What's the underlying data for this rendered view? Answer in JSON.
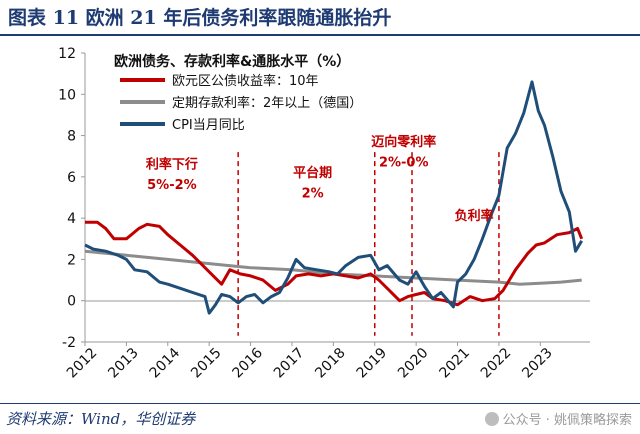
{
  "header": {
    "title": "图表 11  欧洲 21 年后债务利率跟随通胀抬升"
  },
  "footer": {
    "source": "资料来源：Wind，华创证券",
    "watermark": "公众号 · 姚佩策略探索"
  },
  "chart_data": {
    "type": "line",
    "title": "欧洲债务、存款利率&通胀水平（%）",
    "xlabel": "",
    "ylabel": "",
    "xlim": [
      2012,
      2024.2
    ],
    "ylim": [
      -2,
      12
    ],
    "yticks": [
      -2,
      0,
      2,
      4,
      6,
      8,
      10,
      12
    ],
    "xticks": [
      "2012",
      "2013",
      "2014",
      "2015",
      "2016",
      "2017",
      "2018",
      "2019",
      "2020",
      "2021",
      "2022",
      "2023"
    ],
    "legend_position": "top-left",
    "series": [
      {
        "name": "欧元区公债收益率：10年",
        "color": "#c00000",
        "x": [
          2012.0,
          2012.3,
          2012.5,
          2012.7,
          2013.0,
          2013.3,
          2013.5,
          2013.8,
          2014.0,
          2014.3,
          2014.6,
          2014.9,
          2015.1,
          2015.3,
          2015.5,
          2015.75,
          2016.0,
          2016.3,
          2016.6,
          2016.9,
          2017.1,
          2017.4,
          2017.7,
          2018.0,
          2018.3,
          2018.6,
          2018.9,
          2019.1,
          2019.3,
          2019.6,
          2019.8,
          2020.0,
          2020.2,
          2020.4,
          2020.7,
          2021.0,
          2021.3,
          2021.6,
          2021.9,
          2022.1,
          2022.4,
          2022.7,
          2022.9,
          2023.1,
          2023.4,
          2023.7,
          2023.9,
          2024.0
        ],
        "values": [
          3.8,
          3.8,
          3.5,
          3.0,
          3.0,
          3.5,
          3.7,
          3.6,
          3.2,
          2.7,
          2.2,
          1.6,
          1.2,
          0.8,
          1.5,
          1.3,
          1.2,
          1.0,
          0.5,
          0.8,
          1.2,
          1.3,
          1.2,
          1.3,
          1.2,
          1.1,
          1.3,
          1.0,
          0.6,
          0.0,
          0.2,
          0.3,
          0.4,
          0.1,
          0.0,
          -0.2,
          0.2,
          0.0,
          0.1,
          0.5,
          1.5,
          2.3,
          2.7,
          2.8,
          3.2,
          3.3,
          3.5,
          3.0
        ]
      },
      {
        "name": "定期存款利率：2年以上（德国）",
        "color": "#8c8c8c",
        "x": [
          2012.0,
          2013.0,
          2014.0,
          2015.0,
          2016.0,
          2017.0,
          2018.0,
          2019.0,
          2020.0,
          2021.0,
          2022.0,
          2022.5,
          2023.0,
          2023.5,
          2024.0
        ],
        "values": [
          2.4,
          2.2,
          2.0,
          1.8,
          1.6,
          1.5,
          1.3,
          1.2,
          1.1,
          1.0,
          0.9,
          0.8,
          0.85,
          0.9,
          1.0
        ]
      },
      {
        "name": "CPI当月同比",
        "color": "#1f4e79",
        "x": [
          2012.0,
          2012.2,
          2012.5,
          2012.8,
          2013.0,
          2013.2,
          2013.5,
          2013.8,
          2014.0,
          2014.3,
          2014.6,
          2014.9,
          2015.0,
          2015.15,
          2015.3,
          2015.5,
          2015.7,
          2015.9,
          2016.1,
          2016.3,
          2016.5,
          2016.7,
          2016.9,
          2017.1,
          2017.3,
          2017.6,
          2017.9,
          2018.1,
          2018.3,
          2018.6,
          2018.9,
          2019.1,
          2019.3,
          2019.6,
          2019.8,
          2020.0,
          2020.2,
          2020.4,
          2020.6,
          2020.9,
          2021.0,
          2021.2,
          2021.4,
          2021.6,
          2021.8,
          2022.0,
          2022.2,
          2022.4,
          2022.6,
          2022.8,
          2022.95,
          2023.1,
          2023.3,
          2023.5,
          2023.7,
          2023.85,
          2024.0
        ],
        "values": [
          2.7,
          2.5,
          2.4,
          2.2,
          2.0,
          1.5,
          1.4,
          0.9,
          0.8,
          0.6,
          0.4,
          0.2,
          -0.6,
          -0.2,
          0.3,
          0.2,
          -0.1,
          0.2,
          0.3,
          -0.1,
          0.2,
          0.4,
          1.1,
          2.0,
          1.6,
          1.5,
          1.4,
          1.3,
          1.7,
          2.1,
          2.2,
          1.5,
          1.7,
          1.0,
          0.8,
          1.4,
          0.7,
          0.1,
          0.4,
          -0.3,
          0.9,
          1.3,
          2.0,
          3.0,
          4.1,
          5.1,
          7.4,
          8.1,
          9.1,
          10.6,
          9.2,
          8.5,
          7.0,
          5.3,
          4.3,
          2.4,
          2.9
        ]
      }
    ],
    "annotations": [
      {
        "text": "利率下行",
        "x": 2014.1,
        "y": 6.4,
        "color": "#c00000"
      },
      {
        "text": "5%-2%",
        "x": 2014.1,
        "y": 5.4,
        "color": "#c00000"
      },
      {
        "text": "平台期",
        "x": 2017.5,
        "y": 6.0,
        "color": "#c00000"
      },
      {
        "text": "2%",
        "x": 2017.5,
        "y": 5.0,
        "color": "#c00000"
      },
      {
        "text": "迈向零利率",
        "x": 2019.7,
        "y": 7.5,
        "color": "#c00000"
      },
      {
        "text": "2%-0%",
        "x": 2019.7,
        "y": 6.5,
        "color": "#c00000"
      },
      {
        "text": "负利率",
        "x": 2021.4,
        "y": 3.9,
        "color": "#c00000"
      }
    ],
    "vlines": [
      2015.7,
      2019.0,
      2019.9,
      2022.0
    ]
  }
}
